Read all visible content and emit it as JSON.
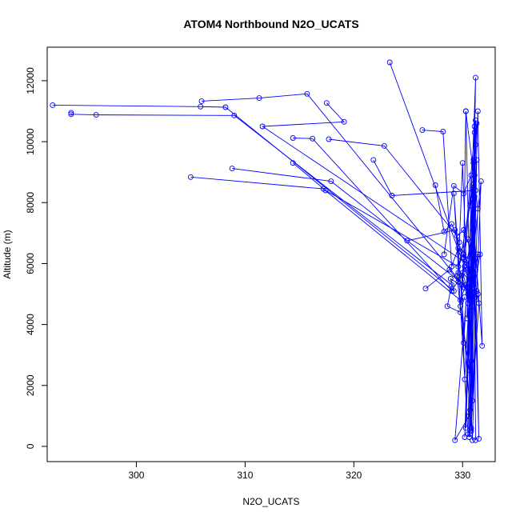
{
  "chart_data": {
    "type": "line",
    "title": "ATOM4 Northbound N2O_UCATS",
    "xlabel": "N2O_UCATS",
    "ylabel": "Altitude (m)",
    "xlim": [
      291.8,
      333.0
    ],
    "ylim": [
      -500,
      13100
    ],
    "xticks": [
      300,
      310,
      320,
      330
    ],
    "yticks": [
      0,
      2000,
      4000,
      6000,
      8000,
      10000,
      12000
    ],
    "grid": false,
    "legend": "none",
    "color": "#0000ff",
    "marker": "open-circle",
    "series": [
      {
        "points": [
          [
            331.2,
            200
          ],
          [
            331.0,
            9300
          ],
          [
            330.5,
            400
          ],
          [
            329.2,
            8300
          ],
          [
            330.8,
            600
          ],
          [
            331.1,
            10500
          ],
          [
            330.6,
            2500
          ],
          [
            329.8,
            4600
          ],
          [
            331.3,
            10600
          ],
          [
            330.2,
            300
          ],
          [
            330.9,
            8100
          ],
          [
            331.5,
            250
          ],
          [
            331.0,
            9400
          ],
          [
            330.7,
            1200
          ],
          [
            331.2,
            12100
          ],
          [
            330.4,
            4200
          ],
          [
            331.4,
            6300
          ],
          [
            330.9,
            200
          ],
          [
            330.0,
            9300
          ],
          [
            329.6,
            5700
          ],
          [
            331.1,
            8900
          ],
          [
            330.3,
            600
          ],
          [
            331.0,
            7400
          ],
          [
            331.8,
            3300
          ],
          [
            331.4,
            11000
          ],
          [
            330.6,
            1000
          ],
          [
            329.3,
            200
          ],
          [
            331.1,
            8200
          ],
          [
            330.5,
            4700
          ],
          [
            331.7,
            8700
          ],
          [
            330.8,
            500
          ],
          [
            331.3,
            9400
          ],
          [
            330.2,
            2200
          ],
          [
            329.9,
            5300
          ],
          [
            331.2,
            10700
          ],
          [
            330.7,
            400
          ],
          [
            331.0,
            7100
          ],
          [
            330.4,
            6100
          ],
          [
            331.5,
            4700
          ],
          [
            330.9,
            1500
          ],
          [
            331.2,
            9900
          ],
          [
            330.1,
            3400
          ],
          [
            329.5,
            5600
          ],
          [
            331.0,
            8500
          ],
          [
            330.6,
            300
          ],
          [
            331.4,
            7800
          ],
          [
            330.3,
            11000
          ],
          [
            330.8,
            2800
          ],
          [
            331.1,
            10300
          ]
        ]
      },
      {
        "points": [
          [
            292.3,
            11200
          ],
          [
            305.9,
            11150
          ],
          [
            308.2,
            11130
          ],
          [
            329.2,
            5100
          ],
          [
            328.9,
            5500
          ],
          [
            330.2,
            5200
          ],
          [
            330.6,
            5000
          ],
          [
            331.0,
            5400
          ],
          [
            330.4,
            5800
          ]
        ]
      },
      {
        "points": [
          [
            294.0,
            10950
          ],
          [
            294.0,
            10900
          ],
          [
            296.3,
            10880
          ],
          [
            309.0,
            10860
          ],
          [
            329.0,
            5300
          ],
          [
            328.6,
            4600
          ],
          [
            329.8,
            4400
          ],
          [
            330.2,
            4900
          ]
        ]
      },
      {
        "points": [
          [
            306.0,
            11330
          ],
          [
            311.3,
            11430
          ],
          [
            315.7,
            11570
          ],
          [
            330.5,
            5100
          ],
          [
            330.0,
            5700
          ],
          [
            331.0,
            5300
          ]
        ]
      },
      {
        "points": [
          [
            317.5,
            11270
          ],
          [
            319.1,
            10650
          ],
          [
            311.6,
            10500
          ],
          [
            330.4,
            6000
          ],
          [
            330.9,
            4600
          ],
          [
            331.2,
            5800
          ]
        ]
      },
      {
        "points": [
          [
            314.4,
            10120
          ],
          [
            316.2,
            10100
          ],
          [
            329.0,
            5100
          ],
          [
            329.9,
            5600
          ],
          [
            330.5,
            5000
          ]
        ]
      },
      {
        "points": [
          [
            317.7,
            10080
          ],
          [
            322.8,
            9860
          ],
          [
            329.5,
            6900
          ],
          [
            330.1,
            7100
          ],
          [
            330.8,
            6400
          ]
        ]
      },
      {
        "points": [
          [
            314.4,
            9300
          ],
          [
            317.4,
            8400
          ],
          [
            329.6,
            5900
          ],
          [
            330.1,
            6300
          ],
          [
            330.9,
            5700
          ]
        ]
      },
      {
        "points": [
          [
            308.8,
            9120
          ],
          [
            317.9,
            8700
          ],
          [
            330.5,
            5200
          ],
          [
            330.9,
            5700
          ],
          [
            331.3,
            5100
          ]
        ]
      },
      {
        "points": [
          [
            305.0,
            8840
          ],
          [
            317.2,
            8450
          ],
          [
            329.8,
            4800
          ],
          [
            330.3,
            5300
          ],
          [
            330.8,
            4900
          ]
        ]
      },
      {
        "points": [
          [
            321.8,
            9400
          ],
          [
            323.5,
            8230
          ],
          [
            331.2,
            8400
          ],
          [
            330.7,
            7900
          ],
          [
            331.0,
            8600
          ]
        ]
      },
      {
        "points": [
          [
            323.3,
            12600
          ],
          [
            331.2,
            4900
          ],
          [
            330.6,
            5500
          ],
          [
            331.4,
            5000
          ]
        ]
      },
      {
        "points": [
          [
            326.3,
            10380
          ],
          [
            328.2,
            10330
          ],
          [
            329.0,
            5900
          ],
          [
            329.6,
            6500
          ],
          [
            330.4,
            6100
          ]
        ]
      },
      {
        "points": [
          [
            324.9,
            6750
          ],
          [
            329.3,
            7100
          ],
          [
            329.8,
            6400
          ],
          [
            330.5,
            6800
          ]
        ]
      },
      {
        "points": [
          [
            327.5,
            8570
          ],
          [
            328.3,
            7050
          ],
          [
            329.0,
            7300
          ],
          [
            329.7,
            6700
          ]
        ]
      },
      {
        "points": [
          [
            326.6,
            5180
          ],
          [
            328.8,
            5800
          ],
          [
            329.6,
            5400
          ],
          [
            330.2,
            5900
          ]
        ]
      },
      {
        "points": [
          [
            328.3,
            6300
          ],
          [
            329.2,
            8550
          ],
          [
            330.1,
            8300
          ],
          [
            330.8,
            8900
          ]
        ]
      },
      {
        "points": [
          [
            330.3,
            11000
          ],
          [
            330.1,
            6200
          ],
          [
            331.6,
            6300
          ],
          [
            330.9,
            4800
          ]
        ]
      }
    ]
  }
}
